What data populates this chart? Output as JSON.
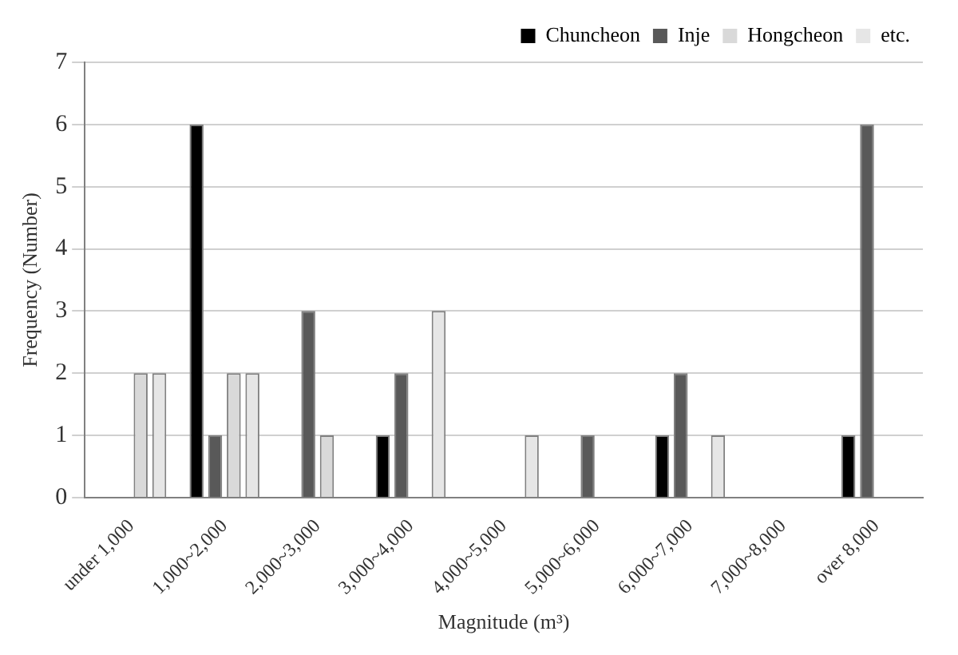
{
  "chart_data": {
    "type": "bar",
    "xlabel": "Magnitude (m³)",
    "ylabel": "Frequency (Number)",
    "categories": [
      "under 1,000",
      "1,000~2,000",
      "2,000~3,000",
      "3,000~4,000",
      "4,000~5,000",
      "5,000~6,000",
      "6,000~7,000",
      "7,000~8,000",
      "over 8,000"
    ],
    "series": [
      {
        "name": "Chuncheon",
        "color": "#000000",
        "values": [
          0,
          6,
          0,
          1,
          0,
          0,
          1,
          0,
          1
        ]
      },
      {
        "name": "Inje",
        "color": "#595959",
        "values": [
          0,
          1,
          3,
          2,
          0,
          1,
          2,
          0,
          6
        ]
      },
      {
        "name": "Hongcheon",
        "color": "#d9d9d9",
        "values": [
          2,
          2,
          1,
          0,
          0,
          0,
          0,
          0,
          0
        ]
      },
      {
        "name": "etc.",
        "color": "#e6e6e6",
        "values": [
          2,
          2,
          0,
          3,
          1,
          0,
          1,
          0,
          0
        ]
      }
    ],
    "ylim": [
      0,
      7
    ],
    "yticks": [
      0,
      1,
      2,
      3,
      4,
      5,
      6,
      7
    ],
    "grid": "y",
    "legend": "top right"
  }
}
